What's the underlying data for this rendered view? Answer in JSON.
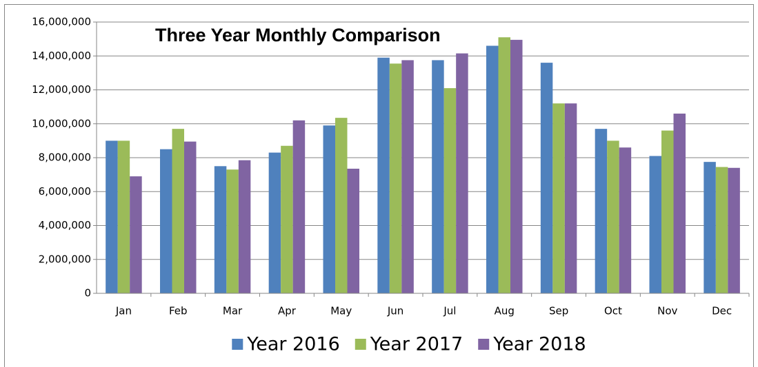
{
  "chart_data": {
    "type": "bar",
    "title": "Three Year Monthly Comparison",
    "categories": [
      "Jan",
      "Feb",
      "Mar",
      "Apr",
      "May",
      "Jun",
      "Jul",
      "Aug",
      "Sep",
      "Oct",
      "Nov",
      "Dec"
    ],
    "series": [
      {
        "name": "Year 2016",
        "color": "#4f81bd",
        "values": [
          9000000,
          8500000,
          7500000,
          8300000,
          9900000,
          13900000,
          13750000,
          14600000,
          13600000,
          9700000,
          8100000,
          7750000
        ]
      },
      {
        "name": "Year 2017",
        "color": "#9bbb59",
        "values": [
          9000000,
          9700000,
          7300000,
          8700000,
          10350000,
          13550000,
          12100000,
          15100000,
          11200000,
          9000000,
          9600000,
          7450000
        ]
      },
      {
        "name": "Year 2018",
        "color": "#8064a2",
        "values": [
          6900000,
          8950000,
          7850000,
          10200000,
          7350000,
          13750000,
          14150000,
          14950000,
          11200000,
          8600000,
          10600000,
          7400000
        ]
      }
    ],
    "ylim": [
      0,
      16000000
    ],
    "yticks": [
      0,
      {
        "value": 2000000,
        "label": "2,000,000"
      },
      {
        "value": 4000000,
        "label": "4,000,000"
      },
      {
        "value": 6000000,
        "label": "6,000,000"
      },
      {
        "value": 8000000,
        "label": "8,000,000"
      },
      {
        "value": 10000000,
        "label": "10,000,000"
      },
      {
        "value": 12000000,
        "label": "12,000,000"
      },
      {
        "value": 14000000,
        "label": "14,000,000"
      },
      {
        "value": 16000000,
        "label": "16,000,000"
      }
    ],
    "grid": true,
    "legend": "bottom"
  }
}
